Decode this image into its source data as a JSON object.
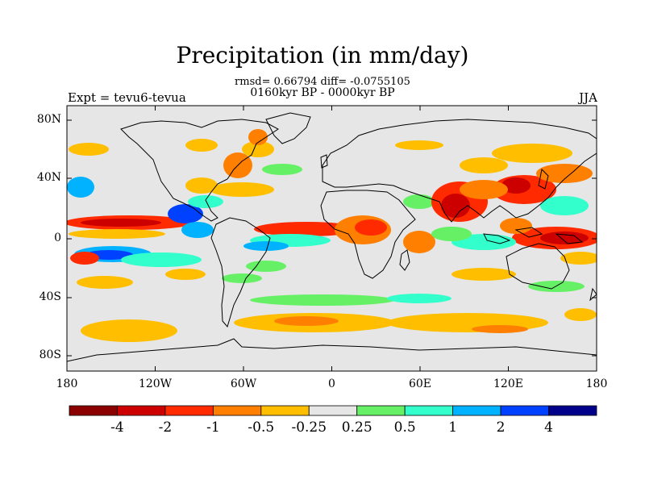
{
  "title": "Precipitation (in mm/day)",
  "stats_line": "rmsd= 0.66794  diff= -0.0755105",
  "period_line": "0160kyr BP - 0000kyr BP",
  "left_string": "Expt = tevu6-tevua",
  "right_string": "JJA",
  "lat_ticks": [
    "80N",
    "40N",
    "0",
    "40S",
    "80S"
  ],
  "lon_ticks": [
    "180",
    "120W",
    "60W",
    "0",
    "60E",
    "120E",
    "180"
  ],
  "colorbar": {
    "labels": [
      "-4",
      "-2",
      "-1",
      "-0.5",
      "-0.25",
      "0.25",
      "0.5",
      "1",
      "2",
      "4"
    ],
    "colors": [
      "#8b0000",
      "#cd0000",
      "#ff2a00",
      "#ff7f00",
      "#ffbf00",
      "#e6e6e6",
      "#66f066",
      "#33ffcc",
      "#00b2ff",
      "#0040ff",
      "#00008b"
    ]
  },
  "colors": {
    "neutral": "#e6e6e6",
    "coast": "#000000"
  }
}
